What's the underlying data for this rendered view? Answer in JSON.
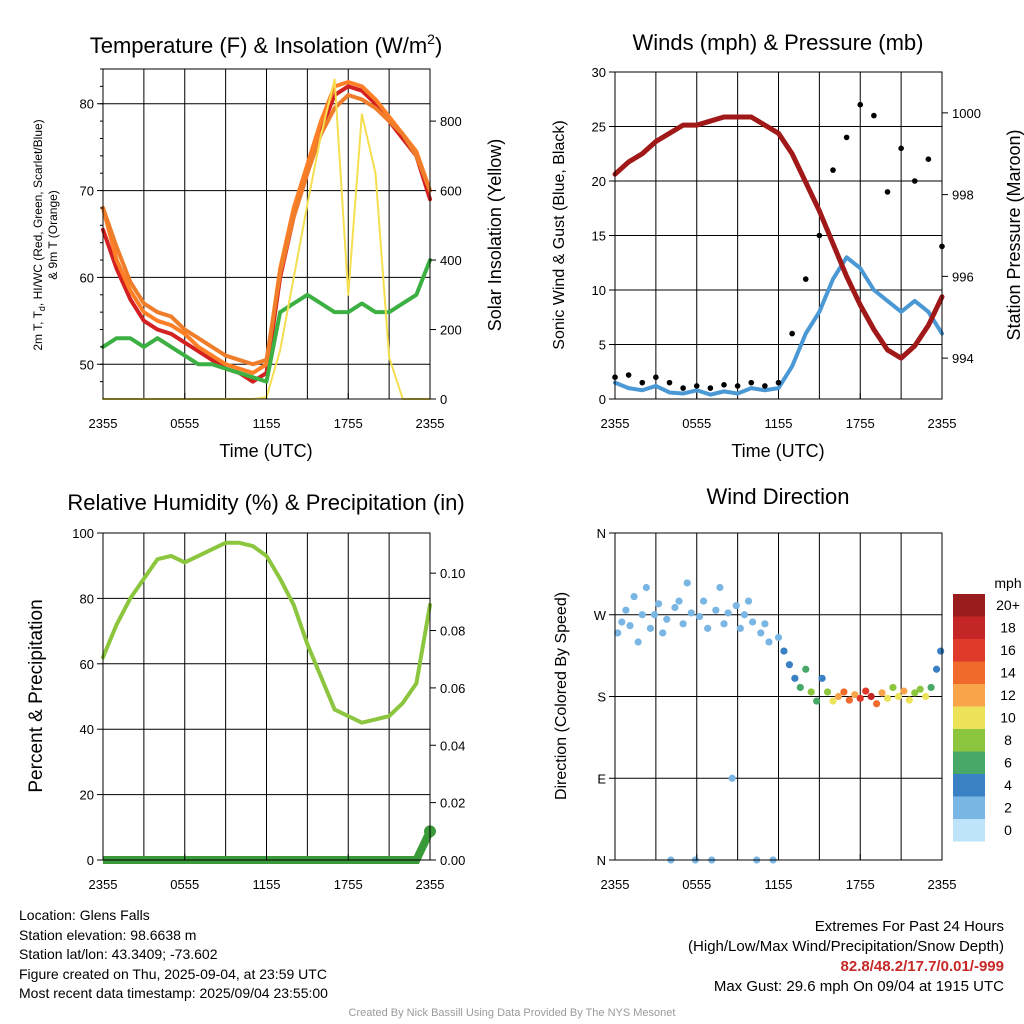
{
  "colors": {
    "temp": "#d32020",
    "dew": "#3cb043",
    "hi_wc": "#ff7f27",
    "nine_m": "#ef7d2a",
    "solar": "#f5de50",
    "wind": "#4a98d4",
    "gust": "#000000",
    "pressure": "#a01818",
    "rh": "#8cc63f",
    "precip": "#3a9a3a"
  },
  "panels": {
    "temperature": {
      "title_main": "Temperature (F) & Insolation (W/m",
      "title_sup": "2",
      "title_close": ")",
      "ylabel_left_line1": "2m T, T",
      "ylabel_left_sub": "d",
      "ylabel_left_rest": ", HI/WC (Red, Green, Scarlet/Blue)",
      "ylabel_left_line2": "& 9m T (Orange)",
      "ylabel_right": "Solar Insolation (Yellow)",
      "xlabel": "Time (UTC)",
      "xticks": [
        "2355",
        "0555",
        "1155",
        "1755",
        "2355"
      ],
      "yticks_left": [
        "50",
        "60",
        "70",
        "80"
      ],
      "yticks_right": [
        "0",
        "200",
        "400",
        "600",
        "800"
      ]
    },
    "winds": {
      "title": "Winds (mph) & Pressure (mb)",
      "ylabel_left": "Sonic Wind & Gust (Blue, Black)",
      "ylabel_right": "Station Pressure (Maroon)",
      "xlabel": "Time (UTC)",
      "xticks": [
        "2355",
        "0555",
        "1155",
        "1755",
        "2355"
      ],
      "yticks_left": [
        "0",
        "5",
        "10",
        "15",
        "20",
        "25",
        "30"
      ],
      "yticks_right": [
        "994",
        "996",
        "998",
        "1000"
      ]
    },
    "humidity": {
      "title": "Relative Humidity (%) & Precipitation (in)",
      "ylabel_left": "Percent & Precipitation",
      "xticks": [
        "2355",
        "0555",
        "1155",
        "1755",
        "2355"
      ],
      "yticks_left": [
        "0",
        "20",
        "40",
        "60",
        "80",
        "100"
      ],
      "yticks_right": [
        "0.00",
        "0.02",
        "0.04",
        "0.06",
        "0.08",
        "0.10"
      ]
    },
    "direction": {
      "title": "Wind Direction",
      "ylabel_left": "Direction (Colored By Speed)",
      "xticks": [
        "2355",
        "0555",
        "1155",
        "1755",
        "2355"
      ],
      "yticks_left": [
        "N",
        "E",
        "S",
        "W",
        "N"
      ],
      "legend_title": "mph",
      "legend_labels": [
        "20+",
        "18",
        "16",
        "14",
        "12",
        "10",
        "8",
        "6",
        "4",
        "2",
        "0"
      ],
      "legend_colors": [
        "#9b1c1c",
        "#c42525",
        "#e03a2a",
        "#f06a2c",
        "#f7a44a",
        "#ece35a",
        "#8cc63f",
        "#48a868",
        "#3a80c4",
        "#7ab6e4",
        "#bde4f8"
      ]
    }
  },
  "chart_data": [
    {
      "type": "line",
      "x": [
        0,
        1,
        2,
        3,
        4,
        5,
        6,
        7,
        8,
        9,
        10,
        11,
        12,
        13,
        14,
        15,
        16,
        17,
        18,
        19,
        20,
        21,
        22,
        23,
        24
      ],
      "xlim": [
        0,
        24
      ],
      "ylim": [
        46,
        84
      ],
      "y2lim": [
        0,
        950
      ],
      "grid": true,
      "series": [
        {
          "key": "temp",
          "axis": "left",
          "values": [
            65.5,
            61,
            57.5,
            55,
            54,
            53.5,
            52.5,
            51.5,
            50.5,
            49.5,
            49,
            48,
            49,
            60,
            67,
            72,
            77,
            81,
            82,
            81.5,
            80,
            78,
            76,
            74,
            69
          ]
        },
        {
          "key": "hi_wc",
          "axis": "left",
          "values": [
            68,
            62,
            58.5,
            56,
            55,
            54.5,
            53.5,
            52,
            51,
            50,
            49.5,
            49,
            50,
            61,
            68,
            73,
            78,
            82,
            82.5,
            82,
            80.5,
            78.5,
            76.5,
            74.5,
            70
          ]
        },
        {
          "key": "nine_m",
          "axis": "left",
          "values": [
            68,
            63.5,
            59.5,
            57,
            56,
            55.5,
            54,
            53,
            52,
            51,
            50.5,
            50,
            50.5,
            60.5,
            67,
            72,
            76.5,
            79.5,
            81,
            80.5,
            79.5,
            78,
            76.5,
            74,
            70
          ]
        },
        {
          "key": "dew",
          "axis": "left",
          "values": [
            52,
            53,
            53,
            52,
            53,
            52,
            51,
            50,
            50,
            49.5,
            49,
            48.5,
            48,
            56,
            57,
            58,
            57,
            56,
            56,
            57,
            56,
            56,
            57,
            58,
            62
          ]
        },
        {
          "key": "solar",
          "axis": "right",
          "values": [
            0,
            0,
            0,
            0,
            0,
            0,
            0,
            0,
            0,
            0,
            0,
            0,
            5,
            140,
            350,
            560,
            760,
            920,
            300,
            820,
            650,
            120,
            0,
            0,
            0
          ]
        }
      ]
    },
    {
      "type": "line",
      "x": [
        0,
        1,
        2,
        3,
        4,
        5,
        6,
        7,
        8,
        9,
        10,
        11,
        12,
        13,
        14,
        15,
        16,
        17,
        18,
        19,
        20,
        21,
        22,
        23,
        24
      ],
      "xlim": [
        0,
        24
      ],
      "ylim": [
        0,
        30
      ],
      "y2lim": [
        993,
        1001
      ],
      "grid": true,
      "series": [
        {
          "key": "wind",
          "axis": "left",
          "values": [
            1.5,
            1,
            0.8,
            1.2,
            0.6,
            0.5,
            0.8,
            0.4,
            0.7,
            0.5,
            1,
            0.8,
            1,
            3,
            6,
            8,
            11,
            13,
            12,
            10,
            9,
            8,
            9,
            8,
            6
          ]
        },
        {
          "key": "gust",
          "axis": "left",
          "values": [
            2,
            2.2,
            1.5,
            2,
            1.5,
            1,
            1.2,
            1,
            1.3,
            1.2,
            1.5,
            1.2,
            1.5,
            6,
            11,
            15,
            21,
            24,
            27,
            26,
            19,
            23,
            20,
            22,
            14
          ]
        },
        {
          "key": "pressure",
          "axis": "right",
          "values": [
            998.5,
            998.8,
            999.0,
            999.3,
            999.5,
            999.7,
            999.7,
            999.8,
            999.9,
            999.9,
            999.9,
            999.7,
            999.5,
            999.0,
            998.3,
            997.6,
            996.8,
            996.0,
            995.3,
            994.7,
            994.2,
            994.0,
            994.3,
            994.8,
            995.5
          ]
        }
      ]
    },
    {
      "type": "line",
      "x": [
        0,
        1,
        2,
        3,
        4,
        5,
        6,
        7,
        8,
        9,
        10,
        11,
        12,
        13,
        14,
        15,
        16,
        17,
        18,
        19,
        20,
        21,
        22,
        23,
        24
      ],
      "xlim": [
        0,
        24
      ],
      "ylim": [
        0,
        100
      ],
      "y2lim": [
        0,
        0.114
      ],
      "grid": true,
      "series": [
        {
          "key": "rh",
          "axis": "left",
          "values": [
            62,
            72,
            80,
            86,
            92,
            93,
            91,
            93,
            95,
            97,
            97,
            96,
            93,
            86,
            78,
            66,
            56,
            46,
            44,
            42,
            43,
            44,
            48,
            54,
            78
          ]
        },
        {
          "key": "precip",
          "axis": "right",
          "values": [
            0,
            0,
            0,
            0,
            0,
            0,
            0,
            0,
            0,
            0,
            0,
            0,
            0,
            0,
            0,
            0,
            0,
            0,
            0,
            0,
            0,
            0,
            0,
            0,
            0.01
          ]
        }
      ]
    },
    {
      "type": "scatter",
      "xlim": [
        0,
        24
      ],
      "ylim": [
        0,
        360
      ],
      "grid": true,
      "yticks_deg": [
        0,
        90,
        180,
        270,
        360
      ],
      "points": [
        [
          0.2,
          250,
          1
        ],
        [
          0.5,
          262,
          1
        ],
        [
          0.8,
          275,
          2
        ],
        [
          1.1,
          258,
          1
        ],
        [
          1.4,
          290,
          2
        ],
        [
          1.7,
          240,
          1
        ],
        [
          2.0,
          270,
          1
        ],
        [
          2.3,
          300,
          2
        ],
        [
          2.6,
          255,
          1
        ],
        [
          2.9,
          270,
          1
        ],
        [
          3.2,
          282,
          1
        ],
        [
          3.5,
          250,
          2
        ],
        [
          3.8,
          265,
          1
        ],
        [
          4.1,
          0,
          1
        ],
        [
          4.4,
          278,
          2
        ],
        [
          4.7,
          285,
          1
        ],
        [
          5.0,
          260,
          1
        ],
        [
          5.3,
          305,
          2
        ],
        [
          5.6,
          272,
          1
        ],
        [
          5.9,
          0,
          1
        ],
        [
          6.2,
          268,
          1
        ],
        [
          6.5,
          285,
          2
        ],
        [
          6.8,
          255,
          1
        ],
        [
          7.1,
          0,
          1
        ],
        [
          7.4,
          275,
          1
        ],
        [
          7.7,
          300,
          2
        ],
        [
          8.0,
          260,
          1
        ],
        [
          8.3,
          272,
          1
        ],
        [
          8.6,
          90,
          1
        ],
        [
          8.9,
          280,
          2
        ],
        [
          9.2,
          255,
          1
        ],
        [
          9.5,
          270,
          1
        ],
        [
          9.8,
          285,
          1
        ],
        [
          10.1,
          262,
          1
        ],
        [
          10.4,
          0,
          1
        ],
        [
          10.7,
          250,
          2
        ],
        [
          11.0,
          260,
          1
        ],
        [
          11.3,
          240,
          1
        ],
        [
          11.6,
          0,
          1
        ],
        [
          12.0,
          245,
          2
        ],
        [
          12.4,
          230,
          3
        ],
        [
          12.8,
          215,
          3
        ],
        [
          13.2,
          200,
          4
        ],
        [
          13.6,
          190,
          5
        ],
        [
          14.0,
          210,
          6
        ],
        [
          14.4,
          185,
          7
        ],
        [
          14.8,
          175,
          5
        ],
        [
          15.2,
          200,
          4
        ],
        [
          15.6,
          185,
          8
        ],
        [
          16.0,
          175,
          10
        ],
        [
          16.4,
          180,
          12
        ],
        [
          16.8,
          185,
          13
        ],
        [
          17.2,
          176,
          14
        ],
        [
          17.6,
          182,
          11
        ],
        [
          18.0,
          178,
          15
        ],
        [
          18.4,
          186,
          16
        ],
        [
          18.8,
          180,
          18
        ],
        [
          19.2,
          172,
          14
        ],
        [
          19.6,
          184,
          12
        ],
        [
          20.0,
          178,
          9
        ],
        [
          20.4,
          190,
          8
        ],
        [
          20.8,
          180,
          10
        ],
        [
          21.2,
          186,
          11
        ],
        [
          21.6,
          176,
          9
        ],
        [
          22.0,
          184,
          8
        ],
        [
          22.4,
          188,
          7
        ],
        [
          22.8,
          180,
          9
        ],
        [
          23.2,
          190,
          6
        ],
        [
          23.6,
          210,
          4
        ],
        [
          23.9,
          230,
          3
        ]
      ]
    }
  ],
  "info": {
    "location": "Location: Glens Falls",
    "elevation": "Station elevation: 98.6638 m",
    "latlon": "Station lat/lon: 43.3409; -73.602",
    "created": "Figure created on Thu, 2025-09-04, at 23:59 UTC",
    "recent": "Most recent data timestamp: 2025/09/04 23:55:00"
  },
  "extremes": {
    "title": "Extremes For Past 24 Hours",
    "subtitle": "(High/Low/Max Wind/Precipitation/Snow Depth)",
    "values": "82.8/48.2/17.7/0.01/-999",
    "gust": "Max Gust: 29.6 mph On 09/04 at 1915 UTC"
  },
  "credit": "Created By Nick Bassill Using Data Provided By The NYS Mesonet"
}
